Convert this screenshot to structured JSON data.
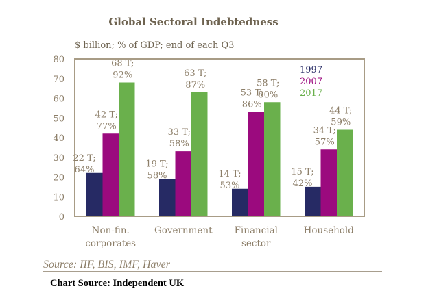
{
  "chart_data": {
    "type": "bar",
    "title": "Global Sectoral Indebtedness",
    "subtitle": "$ billion; % of GDP; end of each Q3",
    "xlabel": "",
    "ylabel": "",
    "ylim": [
      0,
      80
    ],
    "yticks": [
      0,
      10,
      20,
      30,
      40,
      50,
      60,
      70,
      80
    ],
    "grid": false,
    "legend_position": "top-right",
    "categories": [
      [
        "Non-fin.",
        "corporates"
      ],
      [
        "Government"
      ],
      [
        "Financial",
        "sector"
      ],
      [
        "Household"
      ]
    ],
    "series": [
      {
        "name": "1997",
        "color": "#262a64",
        "values": [
          22,
          19,
          14,
          15
        ],
        "labels": [
          [
            "22 T;",
            "64%"
          ],
          [
            "19 T;",
            "58%"
          ],
          [
            "14 T;",
            "53%"
          ],
          [
            "15 T;",
            "42%"
          ]
        ]
      },
      {
        "name": "2007",
        "color": "#9b0a7e",
        "values": [
          42,
          33,
          53,
          34
        ],
        "labels": [
          [
            "42 T;",
            "77%"
          ],
          [
            "33 T;",
            "58%"
          ],
          [
            "53 T;",
            "86%"
          ],
          [
            "34 T;",
            "57%"
          ]
        ]
      },
      {
        "name": "2017",
        "color": "#6ab04c",
        "values": [
          68,
          63,
          58,
          44
        ],
        "labels": [
          [
            "68 T;",
            "92%"
          ],
          [
            "63 T;",
            "87%"
          ],
          [
            "58 T;",
            "80%"
          ],
          [
            "44 T;",
            "59%"
          ]
        ]
      }
    ],
    "source": "Source: IIF, BIS, IMF, Haver",
    "chart_source": "Chart Source:  Independent UK"
  }
}
